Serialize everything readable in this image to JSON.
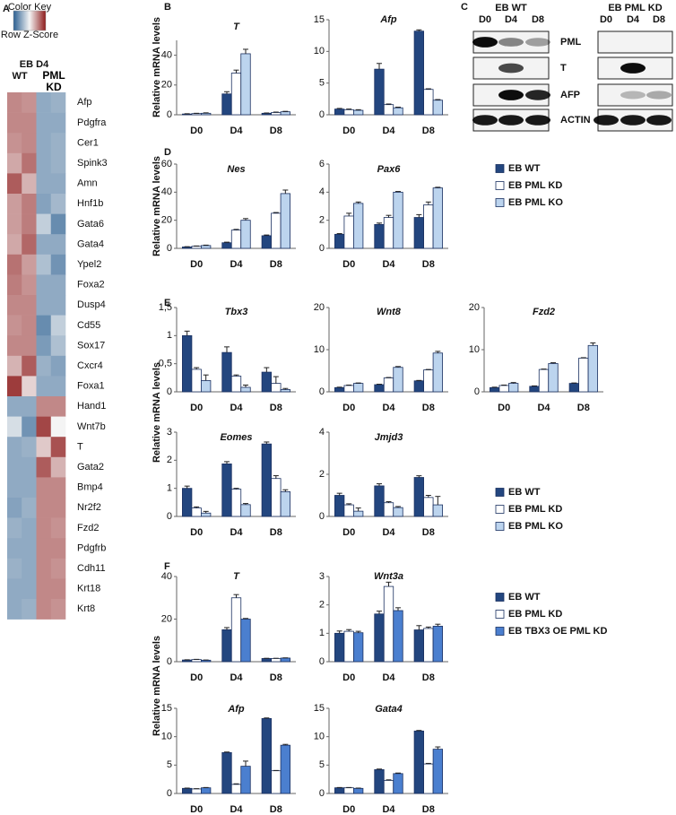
{
  "chart_data": [
    {
      "type": "heatmap",
      "panel": "A",
      "color_key_title": "Color Key",
      "color_key_label": "Row Z-Score",
      "colors": [
        "#2b5f91",
        "#f4f4f4",
        "#8e1b1b"
      ],
      "zlim": [
        -2,
        2
      ],
      "header": "EB D4",
      "columns": [
        "WT",
        "PML KD"
      ],
      "rows": [
        "Afp",
        "Pdgfra",
        "Cer1",
        "Spink3",
        "Amn",
        "Hnf1b",
        "Gata6",
        "Gata4",
        "Ypel2",
        "Foxa2",
        "Dusp4",
        "Cd55",
        "Sox17",
        "Cxcr4",
        "Foxa1",
        "Hand1",
        "Wnt7b",
        "T",
        "Gata2",
        "Bmp4",
        "Nr2f2",
        "Fzd2",
        "Pdgfrb",
        "Cdh11",
        "Krt18",
        "Krt8"
      ],
      "label_colors": [
        "#111",
        "#4b2d6b",
        "#111",
        "#111",
        "#111",
        "#111",
        "#111",
        "#111",
        "#111",
        "#111",
        "#111",
        "#111",
        "#111",
        "#111",
        "#111",
        "#111",
        "#111",
        "#111",
        "#111",
        "#111",
        "#111",
        "#111",
        "#4b2d6b",
        "#4b2d6b",
        "#4b2d6b",
        "#4b2d6b"
      ],
      "values": [
        [
          1.0,
          0.9,
          -1.0,
          -0.9
        ],
        [
          1.0,
          1.0,
          -1.0,
          -1.0
        ],
        [
          0.9,
          1.0,
          -1.0,
          -0.9
        ],
        [
          0.7,
          1.2,
          -1.0,
          -0.9
        ],
        [
          1.4,
          0.6,
          -1.0,
          -1.0
        ],
        [
          0.8,
          1.1,
          -1.1,
          -0.8
        ],
        [
          0.8,
          1.1,
          -0.5,
          -1.4
        ],
        [
          0.7,
          1.3,
          -1.0,
          -1.0
        ],
        [
          1.2,
          0.8,
          -0.7,
          -1.3
        ],
        [
          1.1,
          0.9,
          -1.0,
          -1.0
        ],
        [
          1.0,
          1.0,
          -1.0,
          -1.0
        ],
        [
          0.9,
          1.0,
          -1.4,
          -0.5
        ],
        [
          1.0,
          1.0,
          -1.2,
          -0.7
        ],
        [
          0.6,
          1.4,
          -0.9,
          -1.1
        ],
        [
          1.7,
          0.3,
          -1.0,
          -1.0
        ],
        [
          -1.0,
          -1.0,
          1.0,
          1.0
        ],
        [
          -0.3,
          -1.3,
          1.6,
          0.0
        ],
        [
          -1.0,
          -0.9,
          0.4,
          1.5
        ],
        [
          -1.0,
          -1.0,
          1.4,
          0.6
        ],
        [
          -1.0,
          -1.0,
          1.0,
          1.0
        ],
        [
          -1.1,
          -0.9,
          1.0,
          1.0
        ],
        [
          -0.9,
          -1.0,
          1.0,
          0.9
        ],
        [
          -1.0,
          -1.0,
          1.0,
          1.0
        ],
        [
          -0.9,
          -1.0,
          1.0,
          0.9
        ],
        [
          -1.0,
          -1.0,
          1.0,
          1.0
        ],
        [
          -1.0,
          -0.9,
          1.0,
          0.9
        ]
      ]
    },
    {
      "type": "bar",
      "panel": "B",
      "ylabel": "Relative mRNA levels",
      "title": "T",
      "categories": [
        "D0",
        "D4",
        "D8"
      ],
      "ylim": [
        0,
        50
      ],
      "yticks": [
        0,
        20,
        40
      ],
      "series": [
        {
          "color": "#23467f",
          "values": [
            0.5,
            14,
            1
          ],
          "errors": [
            0.2,
            1.5,
            0.2
          ]
        },
        {
          "color": "#ffffff",
          "values": [
            0.8,
            28,
            1.5
          ],
          "errors": [
            0.2,
            2,
            0.3
          ]
        },
        {
          "color": "#bcd4ee",
          "values": [
            1.0,
            41,
            2
          ],
          "errors": [
            0.3,
            3,
            0.3
          ]
        }
      ]
    },
    {
      "type": "bar",
      "title": "Afp",
      "categories": [
        "D0",
        "D4",
        "D8"
      ],
      "ylim": [
        0,
        15
      ],
      "yticks": [
        0,
        5,
        10,
        15
      ],
      "series": [
        {
          "color": "#23467f",
          "values": [
            0.9,
            7.2,
            13.2
          ],
          "errors": [
            0.1,
            0.9,
            0.2
          ]
        },
        {
          "color": "#ffffff",
          "values": [
            0.8,
            1.6,
            4
          ],
          "errors": [
            0.1,
            0.1,
            0.1
          ]
        },
        {
          "color": "#bcd4ee",
          "values": [
            0.7,
            1.1,
            2.3
          ],
          "errors": [
            0.1,
            0.1,
            0.1
          ]
        }
      ]
    },
    {
      "type": "bar",
      "panel": "D",
      "ylabel": "Relative mRNA levels",
      "title": "Nes",
      "categories": [
        "D0",
        "D4",
        "D8"
      ],
      "ylim": [
        0,
        60
      ],
      "yticks": [
        0,
        20,
        40,
        60
      ],
      "series": [
        {
          "color": "#23467f",
          "values": [
            1,
            4,
            9
          ],
          "errors": [
            0.2,
            0.4,
            0.5
          ]
        },
        {
          "color": "#ffffff",
          "values": [
            1.5,
            13,
            25
          ],
          "errors": [
            0.2,
            0.5,
            0.5
          ]
        },
        {
          "color": "#bcd4ee",
          "values": [
            2,
            20,
            39
          ],
          "errors": [
            0.3,
            1.2,
            2.5
          ]
        }
      ]
    },
    {
      "type": "bar",
      "title": "Pax6",
      "categories": [
        "D0",
        "D4",
        "D8"
      ],
      "ylim": [
        0,
        6
      ],
      "yticks": [
        0,
        2,
        4,
        6
      ],
      "series": [
        {
          "name": "EB WT",
          "color": "#23467f",
          "values": [
            1,
            1.7,
            2.2
          ],
          "errors": [
            0.05,
            0.1,
            0.2
          ]
        },
        {
          "name": "EB PML KD",
          "color": "#ffffff",
          "values": [
            2.3,
            2.2,
            3.1
          ],
          "errors": [
            0.2,
            0.15,
            0.2
          ]
        },
        {
          "name": "EB PML KO",
          "color": "#bcd4ee",
          "values": [
            3.2,
            4,
            4.3
          ],
          "errors": [
            0.1,
            0.05,
            0.05
          ]
        }
      ]
    },
    {
      "type": "bar",
      "panel": "E",
      "ylabel": "Relative mRNA levels",
      "title": "Tbx3",
      "categories": [
        "D0",
        "D4",
        "D8"
      ],
      "ylim": [
        0,
        1.5
      ],
      "yticks": [
        0,
        {
          "value": 0.5,
          "label": "0,5"
        },
        1,
        {
          "value": 1.5,
          "label": "1,5"
        }
      ],
      "series": [
        {
          "color": "#23467f",
          "values": [
            1,
            0.7,
            0.35
          ],
          "errors": [
            0.08,
            0.1,
            0.08
          ]
        },
        {
          "color": "#ffffff",
          "values": [
            0.4,
            0.28,
            0.15
          ],
          "errors": [
            0.03,
            0.02,
            0.12
          ]
        },
        {
          "color": "#bcd4ee",
          "values": [
            0.2,
            0.08,
            0.04
          ],
          "errors": [
            0.1,
            0.04,
            0.02
          ]
        }
      ]
    },
    {
      "type": "bar",
      "title": "Wnt8",
      "categories": [
        "D0",
        "D4",
        "D8"
      ],
      "ylim": [
        0,
        20
      ],
      "yticks": [
        0,
        10,
        20
      ],
      "series": [
        {
          "color": "#23467f",
          "values": [
            1,
            1.7,
            2.6
          ],
          "errors": [
            0.1,
            0.1,
            0.1
          ]
        },
        {
          "color": "#ffffff",
          "values": [
            1.5,
            3.3,
            5.2
          ],
          "errors": [
            0.1,
            0.1,
            0.1
          ]
        },
        {
          "color": "#bcd4ee",
          "values": [
            2,
            5.8,
            9.2
          ],
          "errors": [
            0.1,
            0.2,
            0.4
          ]
        }
      ]
    },
    {
      "type": "bar",
      "title": "Fzd2",
      "categories": [
        "D0",
        "D4",
        "D8"
      ],
      "ylim": [
        0,
        20
      ],
      "yticks": [
        0,
        10,
        20
      ],
      "series": [
        {
          "color": "#23467f",
          "values": [
            1,
            1.3,
            2
          ],
          "errors": [
            0.1,
            0.1,
            0.1
          ]
        },
        {
          "color": "#ffffff",
          "values": [
            1.5,
            5.3,
            8
          ],
          "errors": [
            0.1,
            0.1,
            0.1
          ]
        },
        {
          "color": "#bcd4ee",
          "values": [
            2,
            6.7,
            11
          ],
          "errors": [
            0.2,
            0.2,
            0.6
          ]
        }
      ]
    },
    {
      "type": "bar",
      "title": "Eomes",
      "categories": [
        "D0",
        "D4",
        "D8"
      ],
      "ylim": [
        0,
        3
      ],
      "yticks": [
        0,
        1,
        2,
        3
      ],
      "series": [
        {
          "color": "#23467f",
          "values": [
            1,
            1.87,
            2.58
          ],
          "errors": [
            0.08,
            0.08,
            0.07
          ]
        },
        {
          "color": "#ffffff",
          "values": [
            0.3,
            0.97,
            1.35
          ],
          "errors": [
            0.04,
            0.03,
            0.1
          ]
        },
        {
          "color": "#bcd4ee",
          "values": [
            0.12,
            0.42,
            0.88
          ],
          "errors": [
            0.06,
            0.04,
            0.07
          ]
        }
      ]
    },
    {
      "type": "bar",
      "title": "Jmjd3",
      "categories": [
        "D0",
        "D4",
        "D8"
      ],
      "ylim": [
        0,
        4
      ],
      "yticks": [
        0,
        2,
        4
      ],
      "series": [
        {
          "name": "EB WT",
          "color": "#23467f",
          "values": [
            1,
            1.45,
            1.85
          ],
          "errors": [
            0.1,
            0.1,
            0.08
          ]
        },
        {
          "name": "EB PML KD",
          "color": "#ffffff",
          "values": [
            0.55,
            0.65,
            0.9
          ],
          "errors": [
            0.05,
            0.05,
            0.1
          ]
        },
        {
          "name": "EB PML KO",
          "color": "#bcd4ee",
          "values": [
            0.25,
            0.42,
            0.55
          ],
          "errors": [
            0.15,
            0.05,
            0.4
          ]
        }
      ]
    },
    {
      "type": "bar",
      "panel": "F",
      "ylabel": "Relative mRNA levels",
      "title": "T",
      "categories": [
        "D0",
        "D4",
        "D8"
      ],
      "ylim": [
        0,
        40
      ],
      "yticks": [
        0,
        20,
        40
      ],
      "series": [
        {
          "color": "#23467f",
          "values": [
            0.8,
            15,
            1.5
          ],
          "errors": [
            0.1,
            1,
            0.1
          ]
        },
        {
          "color": "#ffffff",
          "values": [
            1,
            30,
            1.5
          ],
          "errors": [
            0.1,
            1.5,
            0.1
          ]
        },
        {
          "color": "#4b7fcf",
          "values": [
            0.7,
            20,
            1.7
          ],
          "errors": [
            0.1,
            0.3,
            0.1
          ]
        }
      ]
    },
    {
      "type": "bar",
      "title": "Wnt3a",
      "categories": [
        "D0",
        "D4",
        "D8"
      ],
      "ylim": [
        0,
        3
      ],
      "yticks": [
        0,
        1,
        2,
        3
      ],
      "series": [
        {
          "name": "EB WT",
          "color": "#23467f",
          "values": [
            1,
            1.68,
            1.12
          ],
          "errors": [
            0.08,
            0.1,
            0.15
          ]
        },
        {
          "name": "EB PML KD",
          "color": "#ffffff",
          "values": [
            1.07,
            2.65,
            1.17
          ],
          "errors": [
            0.06,
            0.15,
            0.05
          ]
        },
        {
          "name": "EB TBX3 OE PML KD",
          "color": "#4b7fcf",
          "values": [
            1.02,
            1.8,
            1.25
          ],
          "errors": [
            0.05,
            0.1,
            0.07
          ]
        }
      ]
    },
    {
      "type": "bar",
      "title": "Afp",
      "categories": [
        "D0",
        "D4",
        "D8"
      ],
      "ylim": [
        0,
        15
      ],
      "yticks": [
        0,
        5,
        10,
        15
      ],
      "series": [
        {
          "color": "#23467f",
          "values": [
            0.9,
            7.2,
            13.2
          ],
          "errors": [
            0.05,
            0.1,
            0.1
          ]
        },
        {
          "color": "#ffffff",
          "values": [
            0.8,
            1.6,
            4
          ],
          "errors": [
            0.05,
            0.1,
            0.05
          ]
        },
        {
          "color": "#4b7fcf",
          "values": [
            1,
            4.8,
            8.5
          ],
          "errors": [
            0.05,
            0.9,
            0.15
          ]
        }
      ]
    },
    {
      "type": "bar",
      "title": "Gata4",
      "categories": [
        "D0",
        "D4",
        "D8"
      ],
      "ylim": [
        0,
        15
      ],
      "yticks": [
        0,
        5,
        10,
        15
      ],
      "series": [
        {
          "color": "#23467f",
          "values": [
            1,
            4.2,
            11
          ],
          "errors": [
            0.05,
            0.1,
            0.1
          ]
        },
        {
          "color": "#ffffff",
          "values": [
            1,
            2.3,
            5.2
          ],
          "errors": [
            0.05,
            0.1,
            0.1
          ]
        },
        {
          "color": "#4b7fcf",
          "values": [
            0.9,
            3.5,
            7.8
          ],
          "errors": [
            0.05,
            0.1,
            0.4
          ]
        }
      ]
    }
  ],
  "blot": {
    "panel": "C",
    "groups": [
      "EB WT",
      "EB PML KD"
    ],
    "lanes": [
      "D0",
      "D4",
      "D8",
      "D0",
      "D4",
      "D8"
    ],
    "rows": [
      "PML",
      "T",
      "AFP",
      "ACTIN"
    ]
  }
}
